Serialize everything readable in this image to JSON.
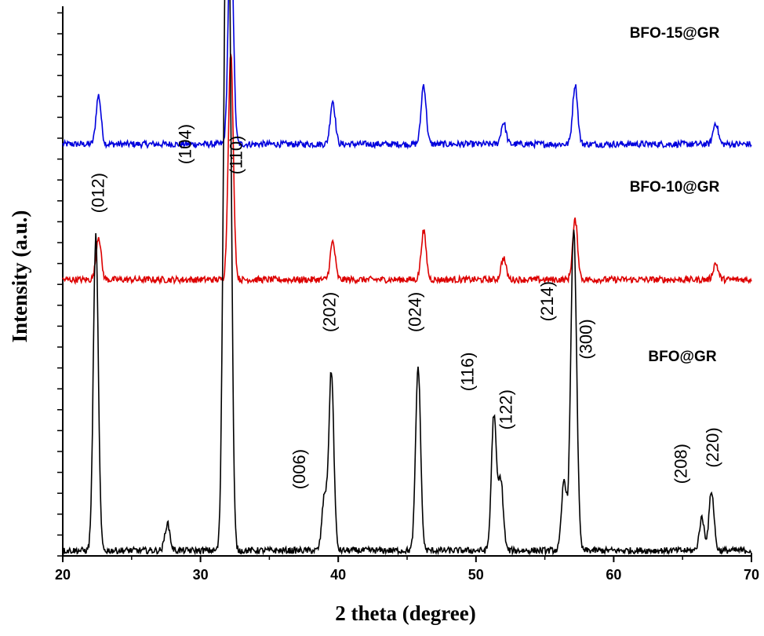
{
  "chart_data": {
    "type": "line",
    "xlabel": "2 theta (degree)",
    "ylabel": "Intensity (a.u.)",
    "xlim": [
      20,
      70
    ],
    "x_ticks": [
      "20",
      "30",
      "40",
      "50",
      "60",
      "70"
    ],
    "y_tick_labels": "none",
    "grid": false,
    "series": [
      {
        "name": "BFO-15@GR",
        "color": "#0000dd",
        "baseline": 0.02,
        "offset": 0.74,
        "peaks": [
          [
            22.6,
            0.09
          ],
          [
            32.2,
            0.42
          ],
          [
            39.6,
            0.08
          ],
          [
            46.2,
            0.11
          ],
          [
            52.0,
            0.04
          ],
          [
            57.2,
            0.11
          ],
          [
            67.4,
            0.04
          ]
        ]
      },
      {
        "name": "BFO-10@GR",
        "color": "#dd0000",
        "baseline": 0.02,
        "offset": 0.49,
        "peaks": [
          [
            22.6,
            0.08
          ],
          [
            32.2,
            0.42
          ],
          [
            39.6,
            0.07
          ],
          [
            46.2,
            0.09
          ],
          [
            52.0,
            0.04
          ],
          [
            57.2,
            0.11
          ],
          [
            67.4,
            0.03
          ]
        ]
      },
      {
        "name": "BFO@GR",
        "color": "#000000",
        "baseline": 0.01,
        "offset": 0.0,
        "peaks": [
          [
            22.4,
            0.58
          ],
          [
            27.6,
            0.05
          ],
          [
            31.8,
            0.9
          ],
          [
            32.1,
            0.88
          ],
          [
            39.0,
            0.1
          ],
          [
            39.5,
            0.33
          ],
          [
            45.8,
            0.34
          ],
          [
            51.3,
            0.25
          ],
          [
            51.8,
            0.13
          ],
          [
            56.4,
            0.13
          ],
          [
            57.0,
            0.36
          ],
          [
            57.2,
            0.33
          ],
          [
            66.4,
            0.06
          ],
          [
            67.1,
            0.11
          ]
        ]
      }
    ],
    "peak_labels": [
      {
        "x": 23.0,
        "y": 0.67,
        "text": "(012)"
      },
      {
        "x": 29.3,
        "y": 0.76,
        "text": "(104)"
      },
      {
        "x": 33.0,
        "y": 0.74,
        "text": "(110)"
      },
      {
        "x": 37.6,
        "y": 0.16,
        "text": "(006)"
      },
      {
        "x": 39.8,
        "y": 0.45,
        "text": "(202)"
      },
      {
        "x": 46.0,
        "y": 0.45,
        "text": "(024)"
      },
      {
        "x": 49.8,
        "y": 0.34,
        "text": "(116)"
      },
      {
        "x": 52.6,
        "y": 0.27,
        "text": "(122)"
      },
      {
        "x": 55.6,
        "y": 0.47,
        "text": "(214)"
      },
      {
        "x": 58.4,
        "y": 0.4,
        "text": "(300)"
      },
      {
        "x": 65.3,
        "y": 0.17,
        "text": "(208)"
      },
      {
        "x": 67.6,
        "y": 0.2,
        "text": "(220)"
      }
    ]
  }
}
